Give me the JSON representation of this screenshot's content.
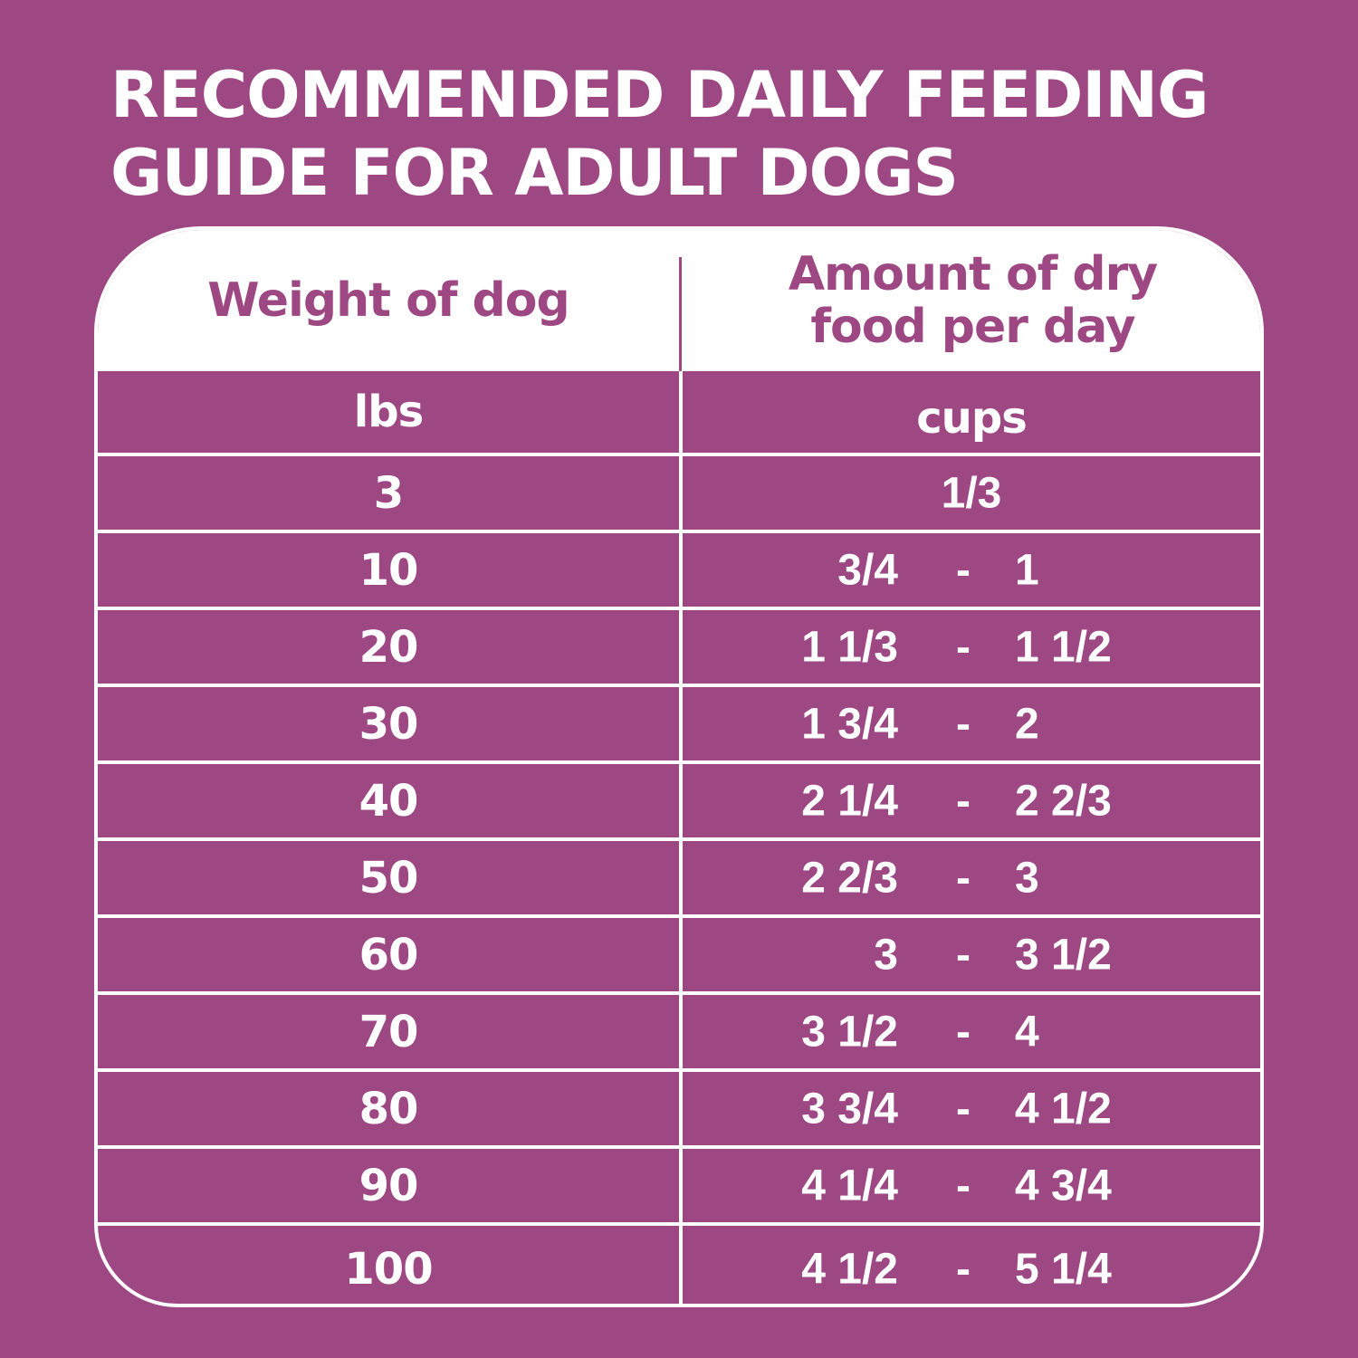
{
  "title": {
    "line1": "RECOMMENDED DAILY FEEDING",
    "line2": "GUIDE FOR ADULT DOGS"
  },
  "table": {
    "headers": {
      "weight": "Weight of dog",
      "amount_line1": "Amount of dry",
      "amount_line2": "food per day"
    },
    "units": {
      "weight": "lbs",
      "amount": "cups"
    },
    "separator": "-",
    "rows": [
      {
        "weight": "3",
        "amount": "1/3"
      },
      {
        "weight": "10",
        "low": "3/4",
        "high": "1"
      },
      {
        "weight": "20",
        "low": "1 1/3",
        "high": "1 1/2"
      },
      {
        "weight": "30",
        "low": "1 3/4",
        "high": "2"
      },
      {
        "weight": "40",
        "low": "2 1/4",
        "high": "2 2/3"
      },
      {
        "weight": "50",
        "low": "2 2/3",
        "high": "3"
      },
      {
        "weight": "60",
        "low": "3",
        "high": "3 1/2"
      },
      {
        "weight": "70",
        "low": "3 1/2",
        "high": "4"
      },
      {
        "weight": "80",
        "low": "3 3/4",
        "high": "4 1/2"
      },
      {
        "weight": "90",
        "low": "4 1/4",
        "high": "4 3/4"
      },
      {
        "weight": "100",
        "low": "4 1/2",
        "high": "5 1/4"
      }
    ]
  },
  "colors": {
    "background": "#9e4883",
    "text": "#ffffff",
    "header_bg": "#ffffff",
    "header_text": "#9e4883"
  }
}
